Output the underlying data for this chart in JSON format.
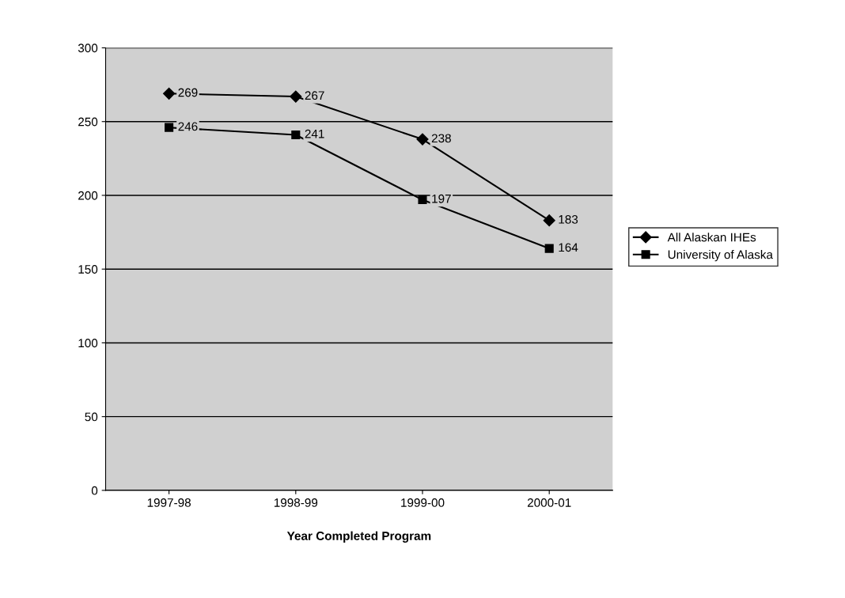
{
  "chart_data": {
    "type": "line",
    "xlabel": "Year Completed Program",
    "categories": [
      "1997-98",
      "1998-99",
      "1999-00",
      "2000-01"
    ],
    "series": [
      {
        "name": "All Alaskan IHEs",
        "color": "#000000",
        "marker": "diamond",
        "values": [
          269,
          267,
          238,
          183
        ]
      },
      {
        "name": "University of Alaska",
        "color": "#000000",
        "marker": "square",
        "values": [
          246,
          241,
          197,
          164
        ]
      }
    ],
    "ylim": [
      0,
      300
    ],
    "yticks": [
      0,
      50,
      100,
      150,
      200,
      250,
      300
    ],
    "grid": "y",
    "legend": "right",
    "data_labels": true,
    "line_style": "solid"
  }
}
